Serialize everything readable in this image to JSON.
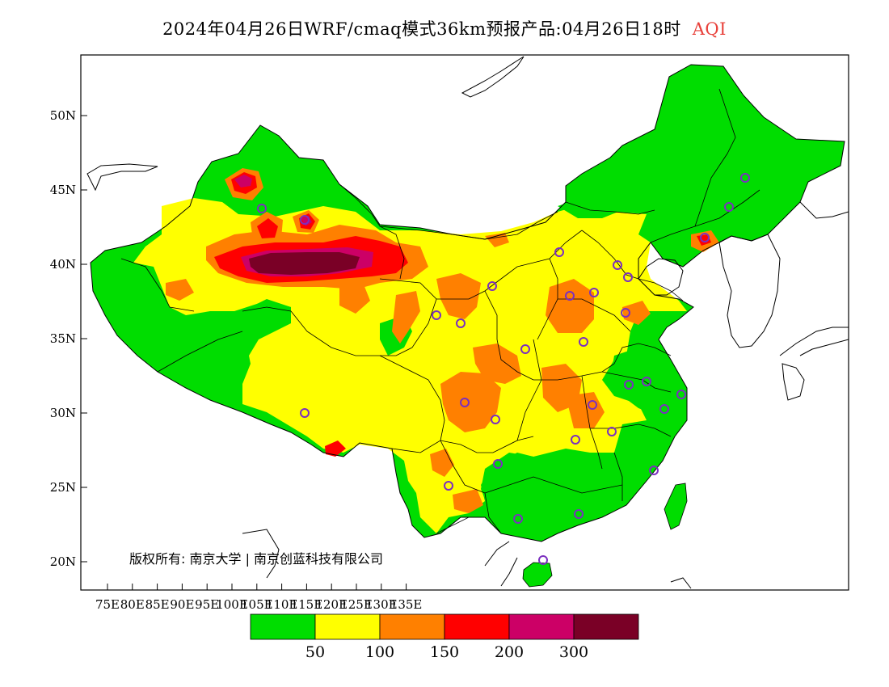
{
  "title": {
    "text": "2024年04月26日WRF/cmaq模式36km预报产品:04月26日18时",
    "variable": "AQI"
  },
  "copyright": "版权所有: 南京大学 | 南京创蓝科技有限公司",
  "axes": {
    "lat_ticks": [
      "50N",
      "45N",
      "40N",
      "35N",
      "30N",
      "25N",
      "20N"
    ],
    "lon_ticks": [
      "75E",
      "80E",
      "85E",
      "90E",
      "95E",
      "100E",
      "105E",
      "110E",
      "115E",
      "120E",
      "125E",
      "130E",
      "135E"
    ],
    "lon_range": [
      73,
      135
    ],
    "lat_range": [
      18,
      54
    ]
  },
  "legend": {
    "colors": [
      "#00dd00",
      "#ffff00",
      "#ff8000",
      "#ff0000",
      "#cc0066",
      "#7a0026"
    ],
    "labels": [
      "50",
      "100",
      "150",
      "200",
      "300"
    ]
  },
  "colors": {
    "station_marker": "#7b2fbf",
    "boundary": "#000000",
    "title_variable": "#e8403a"
  }
}
